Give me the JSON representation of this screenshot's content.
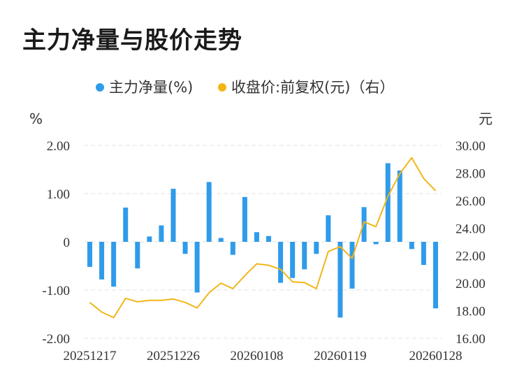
{
  "title": "主力净量与股价走势",
  "chart_data": {
    "type": "bar+line",
    "legend": [
      {
        "name": "主力净量(%)",
        "color": "#2f9bea"
      },
      {
        "name": "收盘价:前复权(元)（右）",
        "color": "#f2b619"
      }
    ],
    "y_left": {
      "unit": "%",
      "min": -2,
      "max": 2,
      "ticks": [
        "2.00",
        "1.00",
        "0",
        "-1.00",
        "-2.00"
      ]
    },
    "y_right": {
      "unit": "元",
      "min": 16,
      "max": 30,
      "ticks": [
        "30.00",
        "28.00",
        "26.00",
        "24.00",
        "22.00",
        "20.00",
        "18.00",
        "16.00"
      ]
    },
    "x_labels": [
      {
        "label": "20251217",
        "index": 0
      },
      {
        "label": "20251226",
        "index": 7
      },
      {
        "label": "20260108",
        "index": 14
      },
      {
        "label": "20260119",
        "index": 21
      },
      {
        "label": "20260128",
        "index": 29
      }
    ],
    "series": [
      {
        "name": "主力净量(%)",
        "type": "bar",
        "values": [
          -0.52,
          -0.78,
          -0.93,
          0.71,
          -0.55,
          0.11,
          0.34,
          1.1,
          -0.25,
          -1.05,
          1.24,
          0.08,
          -0.27,
          0.93,
          0.2,
          0.12,
          -0.85,
          -0.75,
          -0.57,
          -0.25,
          0.55,
          -1.57,
          -0.97,
          0.72,
          -0.05,
          1.63,
          1.48,
          -0.15,
          -0.48,
          -1.38
        ]
      },
      {
        "name": "收盘价:前复权(元)（右）",
        "type": "line",
        "values": [
          18.6,
          17.9,
          17.5,
          18.9,
          18.65,
          18.75,
          18.75,
          18.85,
          18.6,
          18.2,
          19.3,
          20.0,
          19.6,
          20.55,
          21.4,
          21.3,
          21.0,
          20.1,
          20.05,
          19.6,
          22.3,
          22.65,
          21.8,
          24.45,
          24.1,
          26.3,
          27.95,
          29.1,
          27.6,
          26.7
        ]
      }
    ]
  }
}
